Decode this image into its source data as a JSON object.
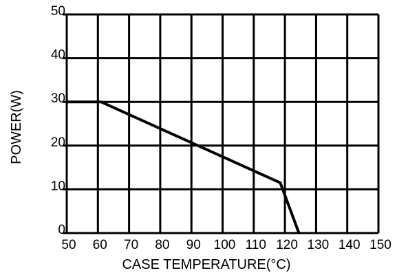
{
  "chart_data": {
    "type": "line",
    "title": "",
    "xlabel": "CASE TEMPERATURE(°C)",
    "ylabel": "POWER(W)",
    "xlim": [
      50,
      150
    ],
    "ylim": [
      0,
      50
    ],
    "grid": true,
    "x_ticks": [
      50,
      60,
      70,
      80,
      90,
      100,
      110,
      120,
      130,
      140,
      150
    ],
    "x_tick_labels": [
      "50",
      "60",
      "70",
      "80",
      "90",
      "100",
      "110",
      "120",
      "130",
      "140",
      "150"
    ],
    "y_ticks": [
      0,
      10,
      20,
      30,
      40,
      50
    ],
    "y_tick_labels": [
      "0",
      "10",
      "20",
      "30",
      "40",
      "50"
    ],
    "series": [
      {
        "x": [
          50,
          61,
          118.5,
          124.5
        ],
        "y": [
          30,
          30,
          11.5,
          0
        ]
      }
    ]
  }
}
